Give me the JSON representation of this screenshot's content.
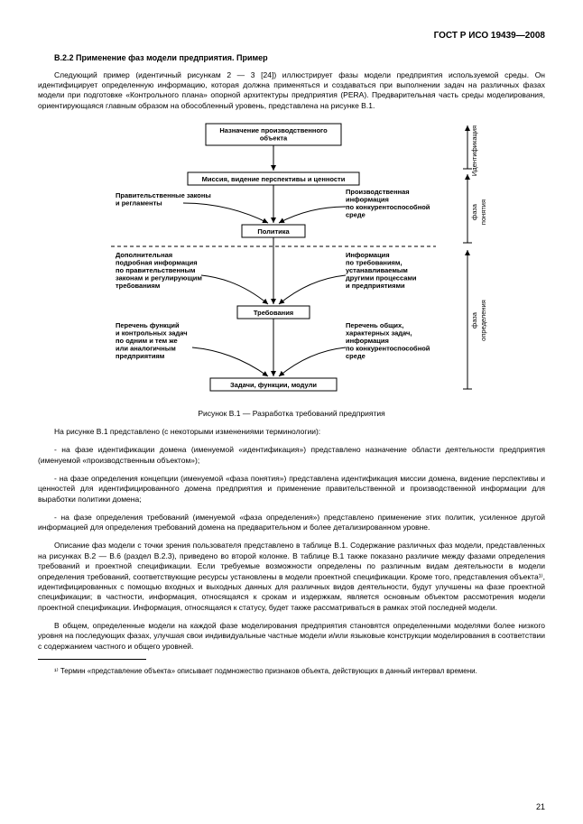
{
  "header": {
    "code": "ГОСТ Р ИСО 19439—2008"
  },
  "section": {
    "number": "В.2.2",
    "title": "Применение фаз модели предприятия. Пример"
  },
  "intro_paragraph": "Следующий пример (идентичный рисункам 2 — 3 [24]) иллюстрирует фазы модели предприятия используемой среды. Он идентифицирует определенную информацию, которая должна применяться и создаваться при выполнении задач на различных фазах модели при подготовке «Контрольного плана» опорной архитектуры предприятия (PERA). Предварительная часть среды моделирования, ориентирующаяся главным образом на обособленный уровень, представлена на рисунке В.1.",
  "figure": {
    "number": "В.1",
    "caption": "Рисунок В.1 — Разработка требований предприятия",
    "colors": {
      "bg": "#ffffff",
      "line": "#000000",
      "text": "#000000"
    },
    "font": {
      "size": 7.5,
      "family": "Arial"
    },
    "nodes": {
      "top": "Назначение производственного объекта",
      "mission": "Миссия, видение перспективы и ценности",
      "laws": [
        "Правительственные законы",
        "и регламенты"
      ],
      "prodinfo": [
        "Производственная",
        "информация",
        "по конкурентоспособной",
        "среде"
      ],
      "policy": "Политика",
      "detail": [
        "Дополнительная",
        "подробная информация",
        "по правительственным",
        "законам и регулирующим",
        "требованиям"
      ],
      "reqinfo": [
        "Информация",
        "по требованиям,",
        "устанавливаемым",
        "другими процессами",
        "и предприятиями"
      ],
      "requirements": "Требования",
      "funclist": [
        "Перечень функций",
        "и контрольных задач",
        "по одним и тем же",
        "или аналогичным",
        "предприятиям"
      ],
      "general": [
        "Перечень общих,",
        "характерных задач,",
        "информация",
        "по конкурентоспособной",
        "среде"
      ],
      "tasks": "Задачи, функции, модули"
    },
    "side_labels": {
      "ident": "Идентификация",
      "concept": [
        "фаза",
        "понятия"
      ],
      "defn": [
        "фаза",
        "определения"
      ]
    }
  },
  "post_figure_intro": "На рисунке В.1 представлено (с некоторыми изменениями терминологии):",
  "bullets": [
    "- на фазе идентификации домена (именуемой «идентификация») представлено назначение области деятельности предприятия (именуемой «производственным объектом»);",
    "- на фазе определения концепции (именуемой «фаза понятия») представлена идентификация миссии домена, видение перспективы и ценностей для идентифицированного домена предприятия и применение правительственной и производственной информации для выработки политики домена;",
    "- на фазе определения требований (именуемой «фаза определения») представлено применение этих политик, усиленное другой информацией для определения требований домена на предварительном и более детализированном уровне."
  ],
  "desc_para1": "Описание фаз модели с точки зрения пользователя представлено в таблице В.1. Содержание различных фаз модели, представленных на рисунках В.2 — В.6 (раздел В.2.3), приведено во второй колонке. В таблице В.1 также показано различие между фазами определения требований и проектной спецификации. Если требуемые возможности определены по различным видам деятельности в модели определения требований, соответствующие ресурсы установлены в модели проектной спецификации. Кроме того, представления объекта¹⁾, идентифицированных с помощью входных и выходных данных для различных видов деятельности, будут улучшены на фазе проектной спецификации; в частности, информация, относящаяся к срокам и издержкам, является основным объектом рассмотрения модели проектной спецификации. Информация, относящаяся к статусу, будет также рассматриваться в рамках этой последней модели.",
  "desc_para2": "В общем, определенные модели на каждой фазе моделирования предприятия становятся определенными моделями более низкого уровня на последующих фазах, улучшая свои индивидуальные частные модели и/или языковые конструкции моделирования в соответствии с содержанием частного и общего уровней.",
  "footnote": "¹⁾ Термин «представление объекта» описывает подмножество признаков объекта, действующих в данный интервал времени.",
  "page_number": "21"
}
